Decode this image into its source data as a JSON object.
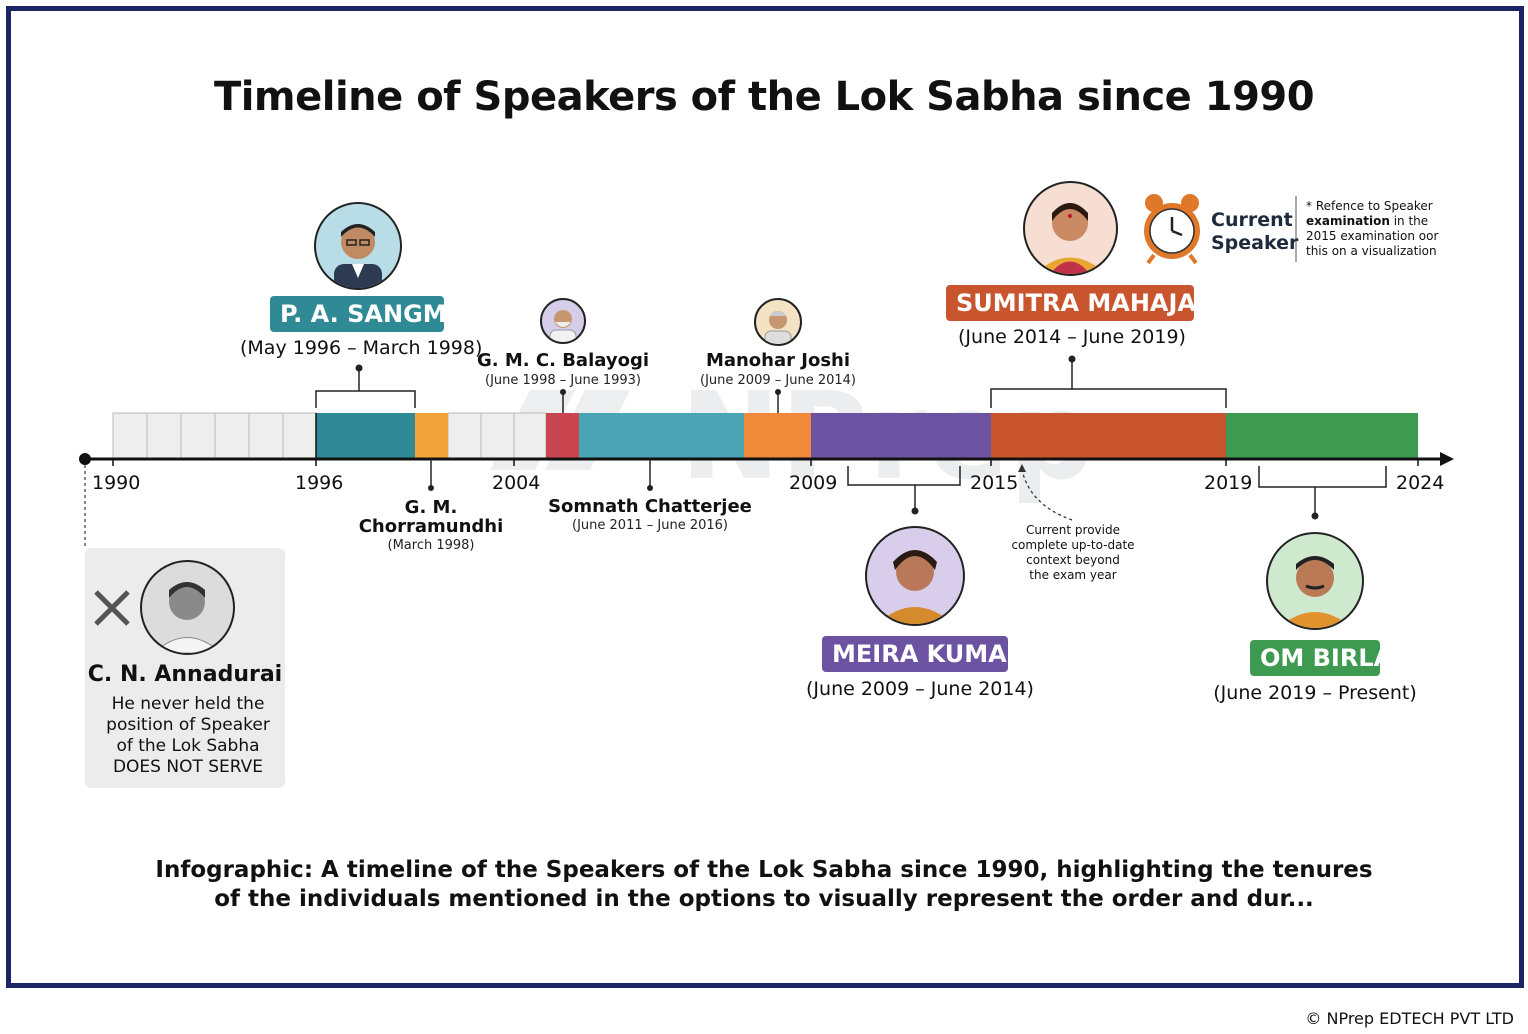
{
  "title": "Timeline of Speakers of the Lok Sabha since 1990",
  "watermark": "NPrep",
  "years": [
    "1990",
    "1996",
    "2004",
    "2009",
    "2015",
    "2019",
    "2024"
  ],
  "speakers": {
    "sangma": {
      "name": "P. A. SANGMA",
      "dates": "(May 1996 – March 1998)",
      "color": "#2f8a96"
    },
    "chorramundhi": {
      "name_line1": "G. M.",
      "name_line2": "Chorramundhi",
      "dates": "(March 1998)",
      "color": "#f2a43a"
    },
    "balayogi": {
      "name": "G. M. C. Balayogi",
      "dates": "(June 1998 – June 1993)",
      "color": "#c9454f"
    },
    "chatterjee": {
      "name": "Somnath Chatterjee",
      "dates": "(June 2011 – June 2016)",
      "color": "#4aa4b4"
    },
    "joshi": {
      "name": "Manohar Joshi",
      "dates": "(June 2009 – June 2014)",
      "color": "#f08a3a"
    },
    "meira": {
      "name": "MEIRA KUMAR",
      "dates": "(June 2009 – June 2014)",
      "color": "#6b53a2"
    },
    "mahajan": {
      "name": "SUMITRA MAHAJAN",
      "dates": "(June 2014 – June 2019)",
      "color": "#c9552f"
    },
    "birla": {
      "name": "OM BIRLA",
      "dates": "(June 2019 – Present)",
      "color": "#3e9a50"
    }
  },
  "current_speaker": {
    "line1": "Current",
    "line2": "Speaker"
  },
  "side_note": {
    "line1": "* Refence to Speaker",
    "line2_bold": "examination",
    "line2_rest": " in the",
    "line3": "2015 examination oor",
    "line4": "this on a visualization"
  },
  "current_note": [
    "Current provide",
    "complete up-to-date",
    "context beyond",
    "the exam year"
  ],
  "annadurai": {
    "name": "C. N. Annadurai",
    "line1": "He never held the",
    "line2": "position of Speaker",
    "line3": "of the Lok Sabha",
    "line4": "DOES NOT SERVE"
  },
  "caption": "Infographic: A timeline of the Speakers of the Lok Sabha since 1990, highlighting the tenures of the individuals mentioned in the options to visually represent the order and dur...",
  "copyright": "© NPrep EDTECH PVT LTD",
  "colors": {
    "frame": "#1c2563",
    "axis": "#111111",
    "bar_empty": "#eeeeee"
  }
}
